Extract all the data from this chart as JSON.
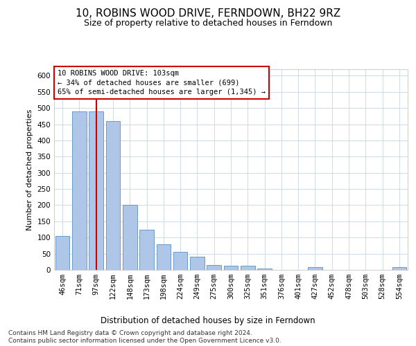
{
  "title": "10, ROBINS WOOD DRIVE, FERNDOWN, BH22 9RZ",
  "subtitle": "Size of property relative to detached houses in Ferndown",
  "xlabel": "Distribution of detached houses by size in Ferndown",
  "ylabel": "Number of detached properties",
  "categories": [
    "46sqm",
    "71sqm",
    "97sqm",
    "122sqm",
    "148sqm",
    "173sqm",
    "198sqm",
    "224sqm",
    "249sqm",
    "275sqm",
    "300sqm",
    "325sqm",
    "351sqm",
    "376sqm",
    "401sqm",
    "427sqm",
    "452sqm",
    "478sqm",
    "503sqm",
    "528sqm",
    "554sqm"
  ],
  "values": [
    105,
    490,
    490,
    460,
    200,
    125,
    80,
    55,
    40,
    15,
    12,
    12,
    5,
    0,
    0,
    8,
    0,
    0,
    0,
    0,
    8
  ],
  "bar_color": "#aec6e8",
  "bar_edge_color": "#5a8fc0",
  "highlight_color": "#cc0000",
  "property_line_x": 2,
  "annotation_line1": "10 ROBINS WOOD DRIVE: 103sqm",
  "annotation_line2": "← 34% of detached houses are smaller (699)",
  "annotation_line3": "65% of semi-detached houses are larger (1,345) →",
  "annotation_box_color": "#cc0000",
  "ylim": [
    0,
    620
  ],
  "yticks": [
    0,
    50,
    100,
    150,
    200,
    250,
    300,
    350,
    400,
    450,
    500,
    550,
    600
  ],
  "footer_text": "Contains HM Land Registry data © Crown copyright and database right 2024.\nContains public sector information licensed under the Open Government Licence v3.0.",
  "background_color": "#ffffff",
  "grid_color": "#d0dce8",
  "title_fontsize": 11,
  "subtitle_fontsize": 9,
  "xlabel_fontsize": 8.5,
  "ylabel_fontsize": 8,
  "tick_fontsize": 7.5,
  "annotation_fontsize": 7.5,
  "footer_fontsize": 6.5
}
